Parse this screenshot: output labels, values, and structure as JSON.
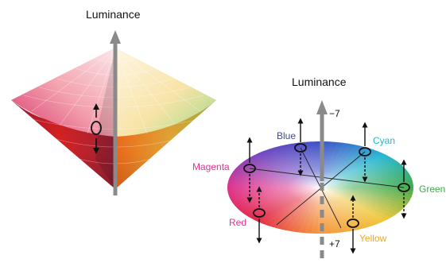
{
  "left_diagram": {
    "axis_label": "Luminance"
  },
  "right_diagram": {
    "axis_label": "Luminance",
    "axis_top_value": "−7",
    "axis_bottom_value": "+7",
    "hues": [
      {
        "name": "Blue",
        "color": "#3d4a8c"
      },
      {
        "name": "Cyan",
        "color": "#26b7cf"
      },
      {
        "name": "Magenta",
        "color": "#e0338f"
      },
      {
        "name": "Green",
        "color": "#3faa4a"
      },
      {
        "name": "Red",
        "color": "#e0338f"
      },
      {
        "name": "Yellow",
        "color": "#e8a92a"
      }
    ]
  },
  "colors": {
    "axis": "#8a8a8a",
    "marker": "#111111"
  }
}
